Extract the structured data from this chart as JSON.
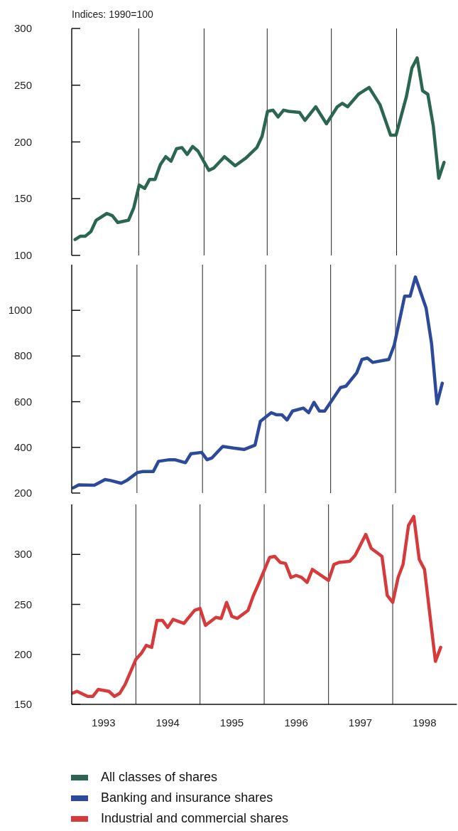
{
  "chart_data": [
    {
      "type": "line",
      "ylabel": "Indices: 1990=100",
      "legend": "bottom",
      "line_style": "solid",
      "tick_labels": "y",
      "xlim": [
        "1993-01",
        "1999-01"
      ],
      "ylim": [
        100,
        300
      ],
      "yticks": [
        100,
        150,
        200,
        250,
        300
      ],
      "ref_lines": [
        {
          "axis": "x",
          "value": "1994-01-17",
          "color": "#222222"
        },
        {
          "axis": "x",
          "value": "1995-01-24",
          "color": "#222222"
        },
        {
          "axis": "x",
          "value": "1996-01-18",
          "color": "#222222"
        },
        {
          "axis": "x",
          "value": "1997-01-17",
          "color": "#222222"
        },
        {
          "axis": "x",
          "value": "1998-01-23",
          "color": "#222222"
        }
      ],
      "series": [
        {
          "name": "All classes of shares",
          "color": "#2a6650",
          "x": [
            "1993-01-20",
            "1993-02-20",
            "1993-03-20",
            "1993-04-20",
            "1993-05-20",
            "1993-07-20",
            "1993-08-20",
            "1993-09-20",
            "1993-11-20",
            "1993-12-20",
            "1994-01-20",
            "1994-02-20",
            "1994-03-20",
            "1994-04-20",
            "1994-05-20",
            "1994-06-20",
            "1994-07-20",
            "1994-08-20",
            "1994-09-20",
            "1994-10-20",
            "1994-11-20",
            "1994-12-20",
            "1995-02-20",
            "1995-03-20",
            "1995-05-20",
            "1995-07-20",
            "1995-09-20",
            "1995-11-20",
            "1995-12-20",
            "1996-01-20",
            "1996-02-20",
            "1996-03-20",
            "1996-04-20",
            "1996-05-20",
            "1996-07-20",
            "1996-08-20",
            "1996-10-20",
            "1996-12-20",
            "1997-02-20",
            "1997-03-20",
            "1997-04-20",
            "1997-06-20",
            "1997-08-20",
            "1997-10-20",
            "1997-12-20",
            "1998-01-20",
            "1998-03-20",
            "1998-04-20",
            "1998-05-20",
            "1998-06-20",
            "1998-07-20",
            "1998-08-20",
            "1998-09-20",
            "1998-10-20"
          ],
          "values": [
            114,
            117,
            117,
            121,
            131,
            137,
            135,
            129,
            131,
            142,
            162,
            159,
            167,
            167,
            180,
            187,
            183,
            194,
            195,
            189,
            196,
            192,
            175,
            177,
            187,
            179,
            186,
            195,
            205,
            227,
            228,
            222,
            228,
            227,
            226,
            219,
            231,
            216,
            231,
            234,
            231,
            242,
            248,
            233,
            206,
            206,
            240,
            265,
            274,
            245,
            242,
            214,
            168,
            182
          ]
        }
      ]
    },
    {
      "type": "line",
      "legend": "bottom",
      "line_style": "solid",
      "tick_labels": "y",
      "xlim": [
        "1993-01",
        "1999-01"
      ],
      "ylim": [
        200,
        1200
      ],
      "yticks": [
        200,
        400,
        600,
        800,
        1000
      ],
      "ref_lines": [
        {
          "axis": "x",
          "value": "1994-01-07",
          "color": "#222222"
        },
        {
          "axis": "x",
          "value": "1995-01-15",
          "color": "#222222"
        },
        {
          "axis": "x",
          "value": "1996-01-09",
          "color": "#222222"
        },
        {
          "axis": "x",
          "value": "1997-01-13",
          "color": "#222222"
        },
        {
          "axis": "x",
          "value": "1998-01-17",
          "color": "#222222"
        }
      ],
      "series": [
        {
          "name": "Banking and insurance shares",
          "color": "#2c4a98",
          "x": [
            "1993-01-10",
            "1993-02-10",
            "1993-05-10",
            "1993-07-10",
            "1993-08-10",
            "1993-10-10",
            "1993-11-10",
            "1994-01-10",
            "1994-02-10",
            "1994-04-10",
            "1994-05-10",
            "1994-07-10",
            "1994-08-10",
            "1994-10-10",
            "1994-11-10",
            "1995-01-10",
            "1995-02-10",
            "1995-03-10",
            "1995-05-10",
            "1995-07-10",
            "1995-09-10",
            "1995-11-10",
            "1995-12-10",
            "1996-02-10",
            "1996-03-10",
            "1996-04-10",
            "1996-05-10",
            "1996-06-10",
            "1996-08-10",
            "1996-09-10",
            "1996-10-10",
            "1996-11-10",
            "1996-12-10",
            "1997-02-10",
            "1997-03-10",
            "1997-04-10",
            "1997-06-10",
            "1997-07-10",
            "1997-08-10",
            "1997-09-10",
            "1997-11-10",
            "1997-12-10",
            "1998-01-10",
            "1998-03-10",
            "1998-04-10",
            "1998-05-10",
            "1998-07-10",
            "1998-08-10",
            "1998-09-10",
            "1998-10-10"
          ],
          "values": [
            223,
            236,
            234,
            259,
            255,
            243,
            255,
            290,
            294,
            294,
            339,
            346,
            346,
            333,
            372,
            378,
            346,
            354,
            404,
            397,
            391,
            410,
            514,
            552,
            543,
            543,
            520,
            559,
            572,
            552,
            597,
            559,
            559,
            630,
            662,
            668,
            726,
            785,
            791,
            772,
            781,
            785,
            849,
            1062,
            1062,
            1146,
            1010,
            855,
            591,
            681
          ]
        }
      ]
    },
    {
      "type": "line",
      "legend": "bottom",
      "line_style": "solid",
      "xlim": [
        "1993-01",
        "1999-01"
      ],
      "xticks": [
        {
          "value": "1993-07",
          "label": "1993"
        },
        {
          "value": "1994-07",
          "label": "1994"
        },
        {
          "value": "1995-07",
          "label": "1995"
        },
        {
          "value": "1996-07",
          "label": "1996"
        },
        {
          "value": "1997-07",
          "label": "1997"
        },
        {
          "value": "1998-07",
          "label": "1998"
        }
      ],
      "ylim": [
        150,
        350
      ],
      "yticks": [
        150,
        200,
        250,
        300
      ],
      "ref_lines": [
        {
          "axis": "x",
          "value": "1994-01",
          "color": "#222222"
        },
        {
          "axis": "x",
          "value": "1995-01",
          "color": "#222222"
        },
        {
          "axis": "x",
          "value": "1996-01",
          "color": "#222222"
        },
        {
          "axis": "x",
          "value": "1997-01",
          "color": "#222222"
        },
        {
          "axis": "x",
          "value": "1998-01",
          "color": "#222222"
        }
      ],
      "series": [
        {
          "name": "Industrial and commercial shares",
          "color": "#d63a3a",
          "x": [
            "1993-01",
            "1993-02",
            "1993-04",
            "1993-05",
            "1993-06",
            "1993-08",
            "1993-09",
            "1993-10",
            "1993-11",
            "1994-01",
            "1994-02",
            "1994-03",
            "1994-04",
            "1994-05",
            "1994-06",
            "1994-07",
            "1994-08",
            "1994-10",
            "1994-12",
            "1995-01",
            "1995-02",
            "1995-04",
            "1995-05",
            "1995-06",
            "1995-07",
            "1995-08",
            "1995-10",
            "1995-11",
            "1995-12",
            "1996-02",
            "1996-03",
            "1996-04",
            "1996-05",
            "1996-06",
            "1996-07",
            "1996-08",
            "1996-09",
            "1996-10",
            "1997-01",
            "1997-02",
            "1997-03",
            "1997-05",
            "1997-06",
            "1997-08",
            "1997-09",
            "1997-11",
            "1997-12",
            "1998-01",
            "1998-02",
            "1998-03",
            "1998-04",
            "1998-05",
            "1998-06",
            "1998-07",
            "1998-09",
            "1998-10"
          ],
          "values": [
            161,
            163,
            158,
            158,
            165,
            163,
            158,
            161,
            170,
            195,
            201,
            209,
            207,
            234,
            234,
            227,
            235,
            231,
            244,
            246,
            229,
            237,
            236,
            252,
            238,
            236,
            244,
            259,
            271,
            297,
            298,
            292,
            291,
            277,
            279,
            277,
            272,
            285,
            274,
            290,
            292,
            293,
            299,
            320,
            306,
            298,
            259,
            252,
            277,
            290,
            329,
            338,
            295,
            285,
            193,
            207
          ]
        }
      ]
    }
  ]
}
